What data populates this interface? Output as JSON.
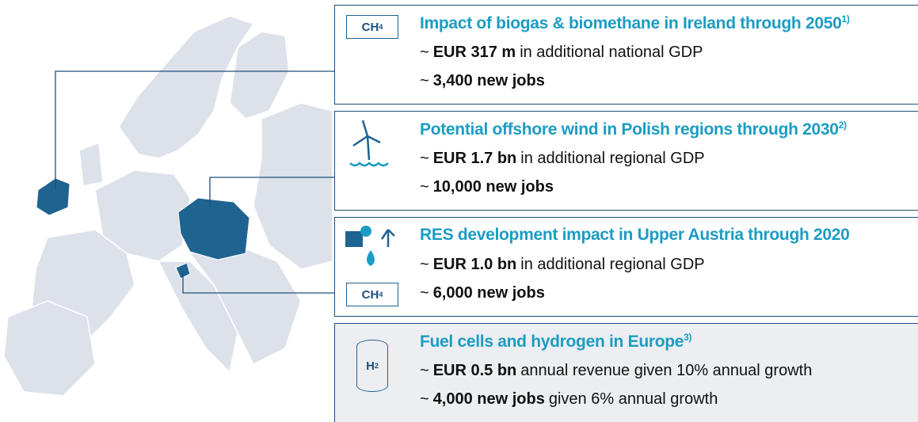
{
  "boxes": [
    {
      "icons": [
        {
          "text": "CH",
          "sub": "4"
        }
      ],
      "title": "Impact of biogas & biomethane in Ireland through 2050",
      "note": "1)",
      "lines": [
        {
          "marker": "~",
          "bold": "EUR 317 m",
          "text": "in additional national GDP"
        },
        {
          "marker": "~",
          "bold": "3,400 new jobs"
        }
      ]
    },
    {
      "icons": [],
      "title": "Potential offshore wind in Polish regions through 2030",
      "note": "2)",
      "lines": [
        {
          "marker": "~",
          "bold": "EUR 1.7 bn",
          "text": "in additional regional GDP"
        },
        {
          "marker": "~",
          "bold": "10,000 new jobs"
        }
      ]
    },
    {
      "icons": [
        {
          "text": "CH",
          "sub": "4"
        }
      ],
      "title": "RES development impact in Upper Austria through 2020",
      "lines": [
        {
          "marker": "~",
          "bold": "EUR 1.0 bn",
          "text": "in additional regional GDP"
        },
        {
          "marker": "~",
          "bold": "6,000 new jobs"
        }
      ]
    },
    {
      "icons": [
        {
          "text": "H",
          "sub": "2"
        }
      ],
      "title": "Fuel cells and hydrogen in Europe",
      "note": "3)",
      "lines": [
        {
          "marker": "~",
          "bold": "EUR 0.5 bn",
          "text": "annual revenue given 10% annual growth"
        },
        {
          "marker": "~",
          "bold": "4,000 new jobs",
          "text": "given 6% annual growth"
        }
      ]
    }
  ]
}
